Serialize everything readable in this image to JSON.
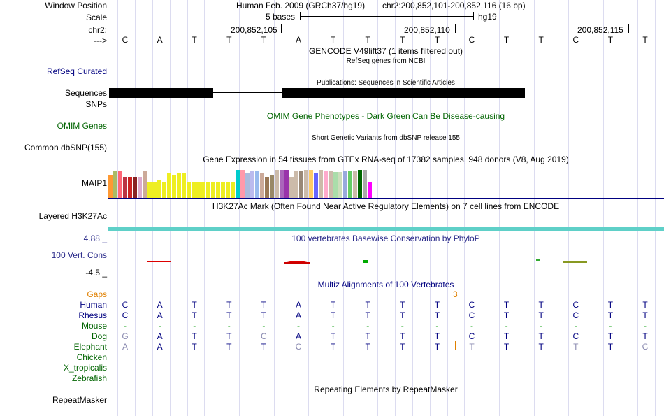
{
  "header": {
    "window_position_label": "Window Position",
    "scale_label": "Scale",
    "chr_label": "chr2:",
    "strand_label": "--->",
    "assembly": "Human Feb. 2009 (GRCh37/hg19)",
    "position": "chr2:200,852,101-200,852,116 (16 bp)",
    "scale_text": "5 bases",
    "scale_db": "hg19",
    "ticks": [
      "200,852,105",
      "200,852,110",
      "200,852,115"
    ]
  },
  "sequence": [
    "C",
    "A",
    "T",
    "T",
    "T",
    "A",
    "T",
    "T",
    "T",
    "T",
    "C",
    "T",
    "T",
    "C",
    "T",
    "T"
  ],
  "tracks": {
    "gencode_title": "GENCODE V49lift37 (1 items filtered out)",
    "refseq_title": "RefSeq genes from NCBI",
    "refseq_label": "RefSeq Curated",
    "publications_title": "Publications: Sequences in Scientific Articles",
    "sequences_label": "Sequences",
    "snps_label": "SNPs",
    "omim_title": "OMIM Gene Phenotypes - Dark Green Can Be Disease-causing",
    "omim_label": "OMIM Genes",
    "dbsnp_title": "Short Genetic Variants from dbSNP release 155",
    "dbsnp_label": "Common dbSNP(155)",
    "gtex_title": "Gene Expression in 54 tissues from GTEx RNA-seq of 17382 samples, 948 donors (V8, Aug 2019)",
    "gtex_label": "MAIP1",
    "h3k27_title": "H3K27Ac Mark (Often Found Near Active Regulatory Elements) on 7 cell lines from ENCODE",
    "h3k27_label": "Layered H3K27Ac",
    "phylop_title": "100 vertebrates Basewise Conservation by PhyloP",
    "phylop_label": "100 Vert. Cons",
    "phylop_max": "4.88 _",
    "phylop_min": "-4.5 _",
    "multiz_title": "Multiz Alignments of 100 Vertebrates",
    "gaps_label": "Gaps",
    "gap_count": "3",
    "repeat_title": "Repeating Elements by RepeatMasker",
    "repeat_label": "RepeatMasker"
  },
  "gtex_values": [
    0.78,
    0.9,
    0.93,
    0.72,
    0.72,
    0.72,
    0.72,
    0.92,
    0.55,
    0.55,
    0.63,
    0.55,
    0.83,
    0.75,
    0.86,
    0.83,
    0.55,
    0.55,
    0.55,
    0.55,
    0.55,
    0.55,
    0.55,
    0.55,
    0.55,
    0.55,
    0.95,
    0.95,
    0.86,
    0.9,
    0.92,
    0.86,
    0.72,
    0.75,
    0.95,
    0.95,
    0.95,
    0.72,
    0.9,
    0.92,
    0.95,
    0.95,
    0.86,
    0.95,
    0.92,
    0.9,
    0.88,
    0.88,
    0.9,
    0.92,
    0.92,
    0.95,
    0.95,
    0.52
  ],
  "gtex_colors": [
    "#ff9933",
    "#aabb66",
    "#ff6677",
    "#bb3344",
    "#cc2222",
    "#882222",
    "#ddaacc",
    "#ccaa99",
    "#eeee22",
    "#eeee22",
    "#eeee22",
    "#eeee22",
    "#eeee22",
    "#eeee22",
    "#eeee22",
    "#eeee22",
    "#eeee22",
    "#eeee22",
    "#eeee22",
    "#eeee22",
    "#eeee22",
    "#eeee22",
    "#eeee22",
    "#eeee22",
    "#eeee22",
    "#eeee22",
    "#00cccc",
    "#ff99aa",
    "#aabbdd",
    "#bbbbee",
    "#99bbee",
    "#ccaa99",
    "#997755",
    "#998866",
    "#ccbbaa",
    "#aa66bb",
    "#9933aa",
    "#ccbbaa",
    "#ccbbaa",
    "#998877",
    "#ccbbaa",
    "#ffcc66",
    "#6666ff",
    "#ccbbaa",
    "#ffaacc",
    "#ccbbaa",
    "#aaddaa",
    "#ccddbb",
    "#99aadd",
    "#66cc66",
    "#ccbbaa",
    "#006600",
    "#aaaaaa",
    "#ff00ff"
  ],
  "species": [
    {
      "name": "Human",
      "seq": [
        "C",
        "A",
        "T",
        "T",
        "T",
        "A",
        "T",
        "T",
        "T",
        "T",
        "C",
        "T",
        "T",
        "C",
        "T",
        "T"
      ],
      "gray": []
    },
    {
      "name": "Rhesus",
      "seq": [
        "C",
        "A",
        "T",
        "T",
        "T",
        "A",
        "T",
        "T",
        "T",
        "T",
        "C",
        "T",
        "T",
        "C",
        "T",
        "T"
      ],
      "gray": []
    },
    {
      "name": "Mouse",
      "seq": [
        "-",
        "-",
        "-",
        "-",
        "-",
        "-",
        "-",
        "-",
        "-",
        "-",
        "-",
        "-",
        "-",
        "-",
        "-",
        "-"
      ],
      "gray": []
    },
    {
      "name": "Dog",
      "seq": [
        "G",
        "A",
        "T",
        "T",
        "C",
        "A",
        "T",
        "T",
        "T",
        "T",
        "C",
        "T",
        "T",
        "C",
        "T",
        "T"
      ],
      "gray": [
        0,
        4
      ]
    },
    {
      "name": "Elephant",
      "seq": [
        "A",
        "A",
        "T",
        "T",
        "T",
        "C",
        "T",
        "T",
        "T",
        "T",
        "T",
        "T",
        "T",
        "T",
        "T",
        "C"
      ],
      "gray": [
        0,
        5,
        10,
        13,
        15
      ]
    },
    {
      "name": "Chicken",
      "seq": [],
      "gray": []
    },
    {
      "name": "X_tropicalis",
      "seq": [],
      "gray": []
    },
    {
      "name": "Zebrafish",
      "seq": [],
      "gray": []
    }
  ],
  "colors": {
    "accent": "#000080",
    "species_green": "#006400",
    "gaps_orange": "#e08000",
    "h3k27": "#5fd0c8"
  }
}
